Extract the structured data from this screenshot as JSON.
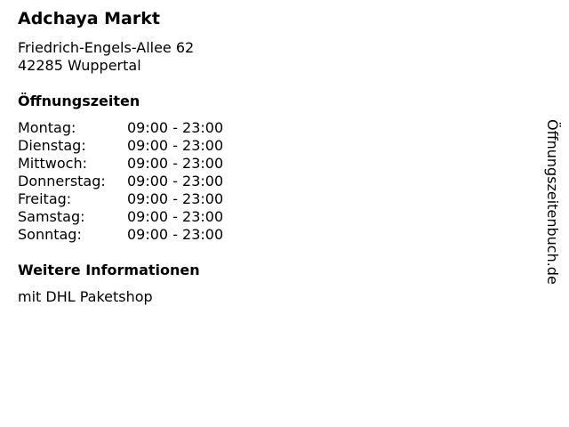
{
  "store": {
    "name": "Adchaya Markt",
    "street": "Friedrich-Engels-Allee 62",
    "city": "42285 Wuppertal"
  },
  "hours_heading": "Öffnungszeiten",
  "hours": [
    {
      "day": "Montag:",
      "time": "09:00 - 23:00"
    },
    {
      "day": "Dienstag:",
      "time": "09:00 - 23:00"
    },
    {
      "day": "Mittwoch:",
      "time": "09:00 - 23:00"
    },
    {
      "day": "Donnerstag:",
      "time": "09:00 - 23:00"
    },
    {
      "day": "Freitag:",
      "time": "09:00 - 23:00"
    },
    {
      "day": "Samstag:",
      "time": "09:00 - 23:00"
    },
    {
      "day": "Sonntag:",
      "time": "09:00 - 23:00"
    }
  ],
  "info_heading": "Weitere Informationen",
  "info_text": "mit DHL Paketshop",
  "watermark": "Öffnungszeitenbuch.de"
}
